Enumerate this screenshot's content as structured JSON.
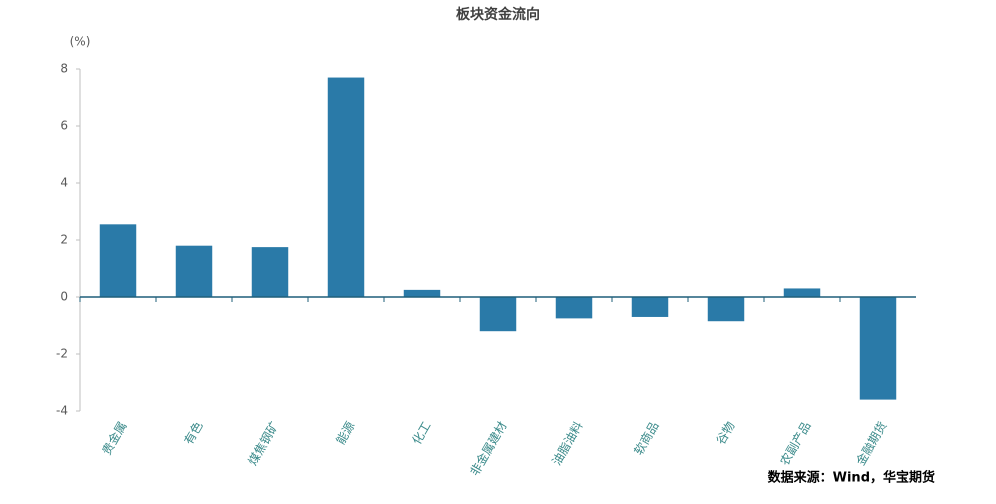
{
  "chart_data": {
    "type": "bar",
    "title": "板块资金流向",
    "y_label": "(%)",
    "source": "数据来源：Wind，华宝期货",
    "categories": [
      "贵金属",
      "有色",
      "煤焦钢矿",
      "能源",
      "化工",
      "非金属建材",
      "油脂油料",
      "软商品",
      "谷物",
      "农副产品",
      "金融期货"
    ],
    "values": [
      2.55,
      1.8,
      1.75,
      7.7,
      0.25,
      -1.2,
      -0.75,
      -0.7,
      -0.85,
      0.3,
      -3.6
    ],
    "color": "#2a7aa8",
    "ylim": [
      -4,
      8
    ],
    "yticks": [
      -4,
      -2,
      0,
      2,
      4,
      6,
      8
    ],
    "grid": false
  }
}
